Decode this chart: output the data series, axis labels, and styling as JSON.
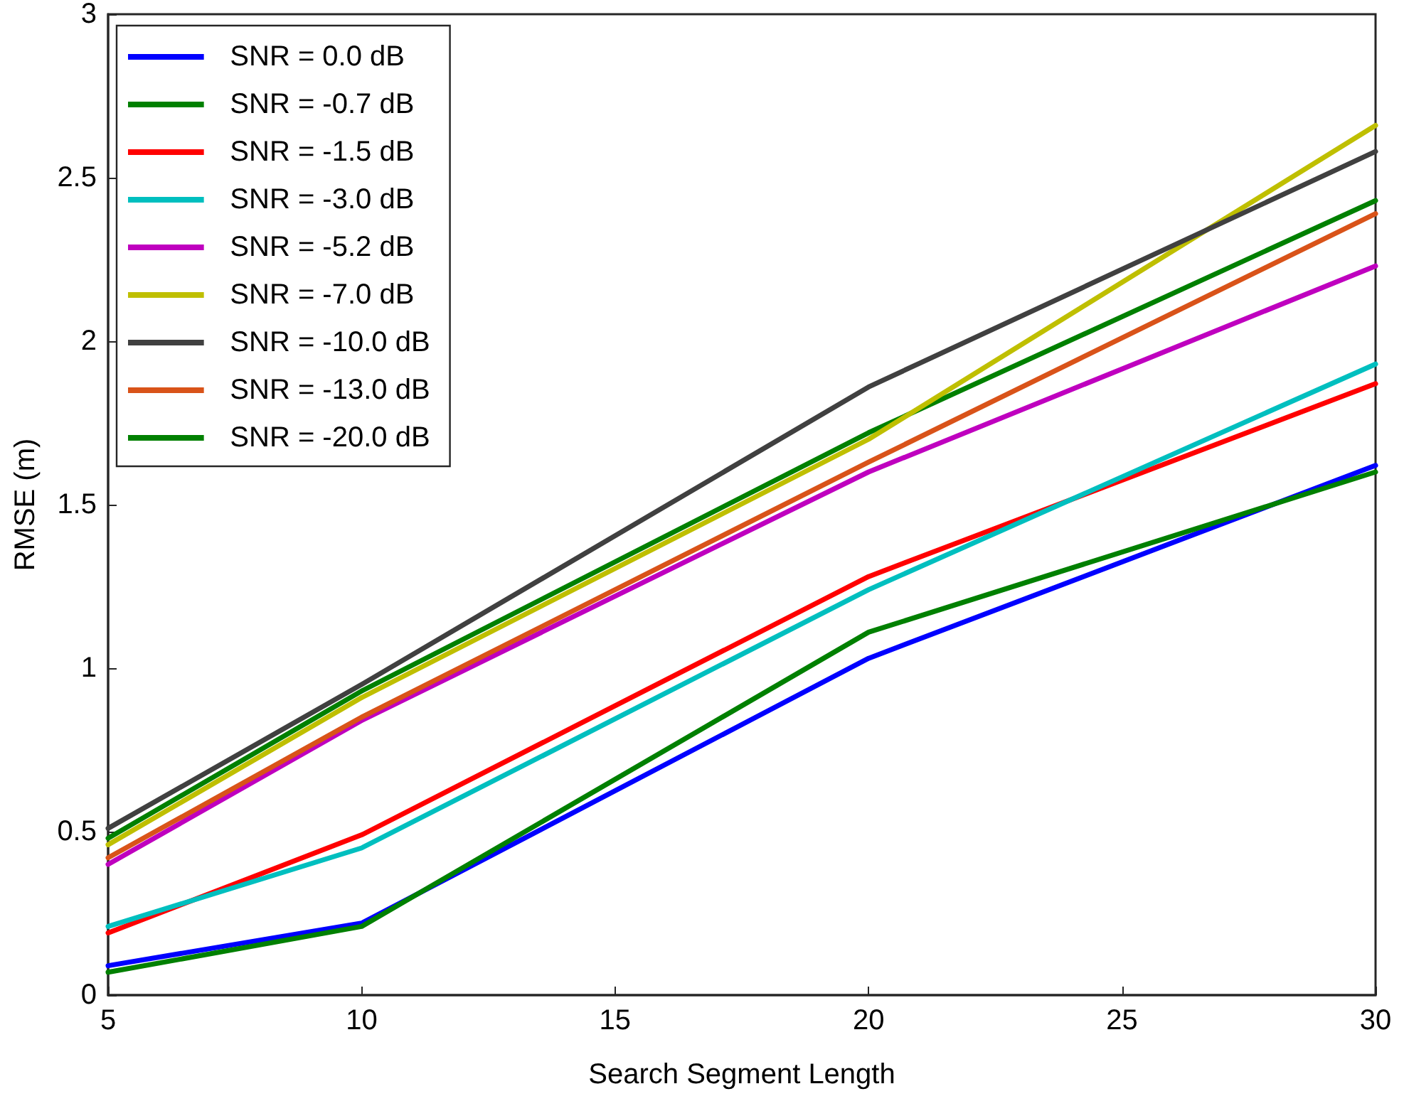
{
  "chart_data": {
    "type": "line",
    "xlabel": "Search Segment Length",
    "ylabel": "RMSE (m)",
    "x": [
      5,
      10,
      20,
      30
    ],
    "xlim": [
      5,
      30
    ],
    "xticks": [
      5,
      10,
      15,
      20,
      25,
      30
    ],
    "ylim": [
      0,
      3
    ],
    "yticks": [
      0,
      0.5,
      1,
      1.5,
      2,
      2.5,
      3
    ],
    "grid": false,
    "legend": "top left",
    "marker": "none",
    "line_style": "solid",
    "series": [
      {
        "name": "SNR = 0.0 dB",
        "color": "#0000ff",
        "values": [
          0.09,
          0.22,
          1.03,
          1.62
        ]
      },
      {
        "name": "SNR = -0.7 dB",
        "color": "#008000",
        "values": [
          0.48,
          0.93,
          1.72,
          2.43
        ]
      },
      {
        "name": "SNR = -1.5 dB",
        "color": "#ff0000",
        "values": [
          0.19,
          0.49,
          1.28,
          1.87
        ]
      },
      {
        "name": "SNR = -3.0 dB",
        "color": "#00bfbf",
        "values": [
          0.21,
          0.45,
          1.24,
          1.93
        ]
      },
      {
        "name": "SNR = -5.2 dB",
        "color": "#bf00bf",
        "values": [
          0.4,
          0.84,
          1.6,
          2.23
        ]
      },
      {
        "name": "SNR = -7.0 dB",
        "color": "#bfbf00",
        "values": [
          0.46,
          0.91,
          1.7,
          2.66
        ]
      },
      {
        "name": "SNR = -10.0 dB",
        "color": "#404040",
        "values": [
          0.51,
          0.95,
          1.86,
          2.58
        ]
      },
      {
        "name": "SNR = -13.0 dB",
        "color": "#d95319",
        "values": [
          0.42,
          0.85,
          1.63,
          2.39
        ]
      },
      {
        "name": "SNR = -20.0 dB",
        "color": "#008000",
        "values": [
          0.07,
          0.21,
          1.11,
          1.6
        ]
      }
    ]
  }
}
